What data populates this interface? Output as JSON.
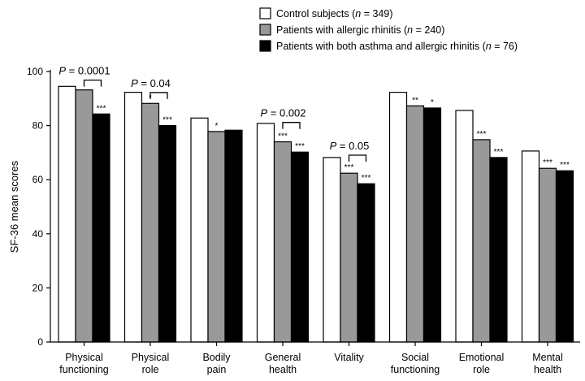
{
  "chart_data": {
    "type": "bar",
    "ylabel": "SF-36 mean scores",
    "xlabel": "",
    "ylim": [
      0,
      100
    ],
    "yticks": [
      0,
      20,
      40,
      60,
      80,
      100
    ],
    "categories": [
      [
        "Physical",
        "functioning"
      ],
      [
        "Physical",
        "role"
      ],
      [
        "Bodily",
        "pain"
      ],
      [
        "General",
        "health"
      ],
      [
        "Vitality"
      ],
      [
        "Social",
        "functioning"
      ],
      [
        "Emotional",
        "role"
      ],
      [
        "Mental",
        "health"
      ]
    ],
    "series": [
      {
        "name": "Control subjects",
        "legend_parts": [
          "Control subjects (",
          "n",
          " = 349)"
        ],
        "color": "#ffffff",
        "values": [
          94.5,
          92.3,
          82.8,
          80.8,
          68.2,
          92.3,
          85.6,
          70.6
        ],
        "significance": [
          "",
          "",
          "",
          "",
          "",
          "",
          "",
          ""
        ]
      },
      {
        "name": "Patients with allergic rhinitis",
        "legend_parts": [
          "Patients with allergic rhinitis (",
          "n",
          " = 240)"
        ],
        "color": "#999999",
        "values": [
          93.2,
          88.2,
          77.8,
          74.0,
          62.4,
          87.3,
          74.8,
          64.2
        ],
        "significance": [
          "",
          "*",
          "*",
          "***",
          "***",
          "**",
          "***",
          "***"
        ]
      },
      {
        "name": "Patients with both asthma and allergic rhinitis",
        "legend_parts": [
          "Patients with both asthma and allergic rhinitis (",
          "n",
          " = 76)"
        ],
        "color": "#000000",
        "values": [
          84.3,
          80.0,
          78.3,
          70.2,
          58.5,
          86.5,
          68.2,
          63.3
        ],
        "significance": [
          "***",
          "***",
          "",
          "***",
          "***",
          "*",
          "***",
          "***"
        ]
      }
    ],
    "p_values": [
      {
        "category_index": 0,
        "text": "P = 0.0001"
      },
      {
        "category_index": 1,
        "text": "P = 0.04"
      },
      {
        "category_index": 3,
        "text": "P = 0.002"
      },
      {
        "category_index": 4,
        "text": "P = 0.05"
      }
    ]
  }
}
